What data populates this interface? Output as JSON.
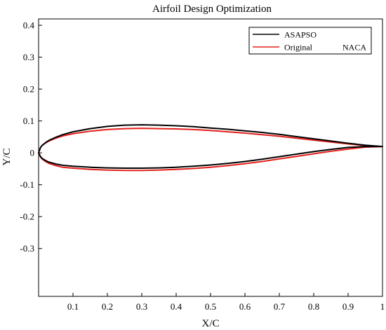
{
  "chart_data": {
    "type": "line",
    "title": "Airfoil Design Optimization",
    "xlabel": "X/C",
    "ylabel": "Y/C",
    "xlim": [
      0,
      1
    ],
    "ylim": [
      -0.45,
      0.42
    ],
    "x_ticks": [
      0.1,
      0.2,
      0.3,
      0.4,
      0.5,
      0.6,
      0.7,
      0.8,
      0.9,
      1
    ],
    "x_tick_labels": [
      "0.1",
      "0.2",
      "0.3",
      "0.4",
      "0.5",
      "0.6",
      "0.7",
      "0.8",
      "0.9",
      "1"
    ],
    "y_ticks": [
      0.4,
      0.3,
      0.2,
      0.1,
      0,
      -0.1,
      -0.2,
      -0.3
    ],
    "y_tick_labels": [
      "0.4",
      "0.3",
      "0.2",
      "0.1",
      "0",
      "-0.1",
      "-0.2",
      "-0.3"
    ],
    "grid": false,
    "legend_position": "top-right",
    "series": [
      {
        "name": "ASAPSO",
        "color": "#000000",
        "x": [
          1.0,
          0.95,
          0.9,
          0.85,
          0.8,
          0.75,
          0.7,
          0.65,
          0.6,
          0.55,
          0.5,
          0.45,
          0.4,
          0.35,
          0.3,
          0.25,
          0.2,
          0.15,
          0.1,
          0.07,
          0.05,
          0.03,
          0.02,
          0.01,
          0.005,
          0.0,
          0.005,
          0.01,
          0.02,
          0.03,
          0.05,
          0.07,
          0.1,
          0.15,
          0.2,
          0.25,
          0.3,
          0.35,
          0.4,
          0.45,
          0.5,
          0.55,
          0.6,
          0.65,
          0.7,
          0.75,
          0.8,
          0.85,
          0.9,
          0.95,
          1.0
        ],
        "y": [
          0.02,
          0.024,
          0.03,
          0.037,
          0.044,
          0.051,
          0.058,
          0.064,
          0.069,
          0.074,
          0.078,
          0.082,
          0.085,
          0.087,
          0.088,
          0.087,
          0.083,
          0.076,
          0.066,
          0.057,
          0.049,
          0.039,
          0.032,
          0.023,
          0.016,
          0.0,
          -0.011,
          -0.017,
          -0.024,
          -0.029,
          -0.035,
          -0.039,
          -0.042,
          -0.045,
          -0.047,
          -0.048,
          -0.048,
          -0.047,
          -0.045,
          -0.042,
          -0.038,
          -0.033,
          -0.027,
          -0.02,
          -0.012,
          -0.004,
          0.004,
          0.011,
          0.017,
          0.02,
          0.02
        ]
      },
      {
        "name": "Original NACA",
        "color": "#e3201b",
        "x": [
          1.0,
          0.95,
          0.9,
          0.85,
          0.8,
          0.75,
          0.7,
          0.65,
          0.6,
          0.55,
          0.5,
          0.45,
          0.4,
          0.35,
          0.3,
          0.25,
          0.2,
          0.15,
          0.1,
          0.07,
          0.05,
          0.03,
          0.02,
          0.01,
          0.005,
          0.0,
          0.005,
          0.01,
          0.02,
          0.03,
          0.05,
          0.07,
          0.1,
          0.15,
          0.2,
          0.25,
          0.3,
          0.35,
          0.4,
          0.45,
          0.5,
          0.55,
          0.6,
          0.65,
          0.7,
          0.75,
          0.8,
          0.85,
          0.9,
          0.95,
          1.0
        ],
        "y": [
          0.02,
          0.023,
          0.028,
          0.034,
          0.04,
          0.046,
          0.052,
          0.057,
          0.062,
          0.066,
          0.07,
          0.073,
          0.075,
          0.076,
          0.077,
          0.076,
          0.073,
          0.068,
          0.06,
          0.053,
          0.046,
          0.037,
          0.031,
          0.023,
          0.016,
          0.0,
          -0.012,
          -0.019,
          -0.027,
          -0.033,
          -0.04,
          -0.045,
          -0.048,
          -0.052,
          -0.054,
          -0.055,
          -0.055,
          -0.054,
          -0.052,
          -0.049,
          -0.045,
          -0.04,
          -0.034,
          -0.027,
          -0.019,
          -0.011,
          -0.003,
          0.005,
          0.012,
          0.018,
          0.02
        ]
      }
    ]
  }
}
